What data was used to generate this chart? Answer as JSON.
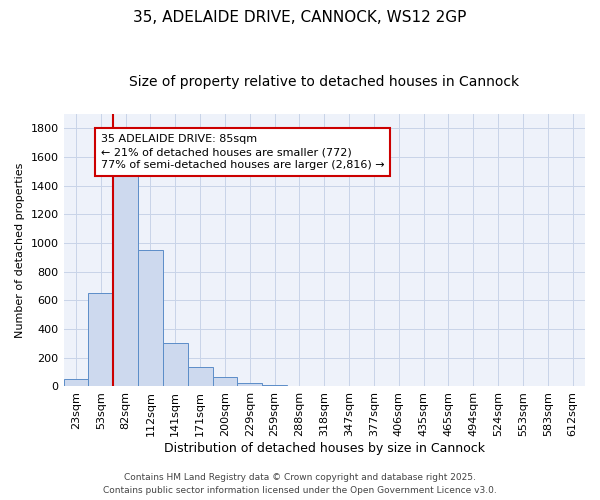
{
  "title1": "35, ADELAIDE DRIVE, CANNOCK, WS12 2GP",
  "title2": "Size of property relative to detached houses in Cannock",
  "xlabel": "Distribution of detached houses by size in Cannock",
  "ylabel": "Number of detached properties",
  "categories": [
    "23sqm",
    "53sqm",
    "82sqm",
    "112sqm",
    "141sqm",
    "171sqm",
    "200sqm",
    "229sqm",
    "259sqm",
    "288sqm",
    "318sqm",
    "347sqm",
    "377sqm",
    "406sqm",
    "435sqm",
    "465sqm",
    "494sqm",
    "524sqm",
    "553sqm",
    "583sqm",
    "612sqm"
  ],
  "values": [
    50,
    650,
    1500,
    950,
    300,
    135,
    65,
    25,
    10,
    2,
    2,
    0,
    0,
    0,
    0,
    0,
    0,
    0,
    0,
    0,
    0
  ],
  "bar_color": "#cdd9ee",
  "bar_edge_color": "#5b8dc8",
  "red_line_index": 2,
  "red_line_color": "#cc0000",
  "annotation_text": "35 ADELAIDE DRIVE: 85sqm\n← 21% of detached houses are smaller (772)\n77% of semi-detached houses are larger (2,816) →",
  "annotation_box_color": "#ffffff",
  "annotation_box_edge": "#cc0000",
  "ylim": [
    0,
    1900
  ],
  "yticks": [
    0,
    200,
    400,
    600,
    800,
    1000,
    1200,
    1400,
    1600,
    1800
  ],
  "grid_color": "#c8d4e8",
  "bg_color": "#eef2fa",
  "footer1": "Contains HM Land Registry data © Crown copyright and database right 2025.",
  "footer2": "Contains public sector information licensed under the Open Government Licence v3.0.",
  "title1_fontsize": 11,
  "title2_fontsize": 10,
  "xlabel_fontsize": 9,
  "ylabel_fontsize": 8,
  "tick_fontsize": 8,
  "annotation_fontsize": 8,
  "footer_fontsize": 6.5
}
